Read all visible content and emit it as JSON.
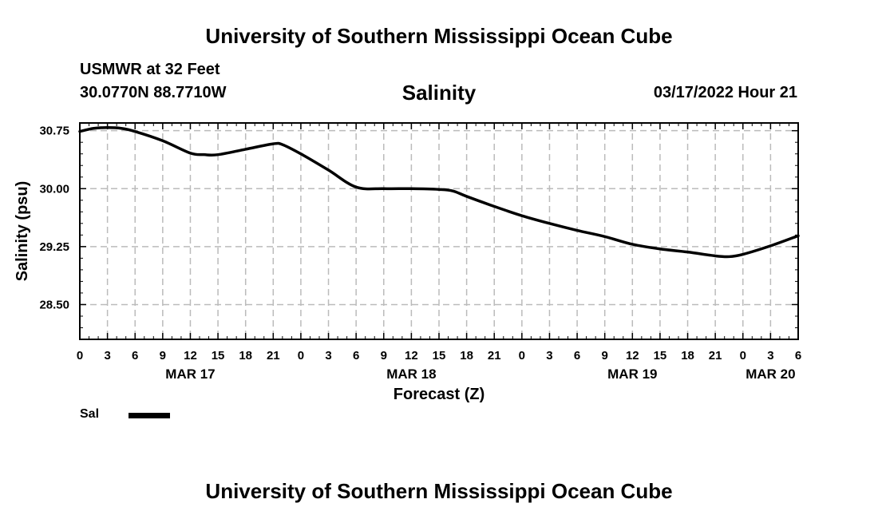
{
  "header": {
    "title": "University of Southern Mississippi Ocean Cube",
    "station": "USMWR at 32 Feet",
    "coords": "30.0770N  88.7710W",
    "date": "03/17/2022 Hour 21"
  },
  "footer": {
    "title": "University of Southern Mississippi Ocean Cube"
  },
  "legend": {
    "label": "Sal",
    "color": "#000000"
  },
  "chart_data": {
    "type": "line",
    "title": "Salinity",
    "xlabel": "Forecast (Z)",
    "ylabel": "Salinity (psu)",
    "xlim": [
      0,
      78
    ],
    "ylim": [
      28.05,
      30.85
    ],
    "grid": true,
    "yticks": [
      28.5,
      29.25,
      30.0,
      30.75
    ],
    "ytick_labels": [
      "28.50",
      "29.25",
      "30.00",
      "30.75"
    ],
    "xtick_values": [
      0,
      3,
      6,
      9,
      12,
      15,
      18,
      21,
      24,
      27,
      30,
      33,
      36,
      39,
      42,
      45,
      48,
      51,
      54,
      57,
      60,
      63,
      66,
      69,
      72,
      75,
      78
    ],
    "xtick_labels": [
      "0",
      "3",
      "6",
      "9",
      "12",
      "15",
      "18",
      "21",
      "0",
      "3",
      "6",
      "9",
      "12",
      "15",
      "18",
      "21",
      "0",
      "3",
      "6",
      "9",
      "12",
      "15",
      "18",
      "21",
      "0",
      "3",
      "6"
    ],
    "date_labels": [
      {
        "x": 12,
        "label": "MAR 17"
      },
      {
        "x": 36,
        "label": "MAR 18"
      },
      {
        "x": 60,
        "label": "MAR 19"
      },
      {
        "x": 75,
        "label": "MAR 20"
      }
    ],
    "series": [
      {
        "name": "Sal",
        "x": [
          0,
          1.5,
          3,
          4.5,
          6,
          9,
          12,
          13.5,
          15,
          18,
          21,
          22,
          24,
          27,
          30,
          33,
          36,
          39,
          40.5,
          42,
          45,
          48,
          51,
          54,
          57,
          60,
          63,
          66,
          69,
          70.5,
          72,
          75,
          78
        ],
        "values": [
          30.74,
          30.78,
          30.79,
          30.78,
          30.74,
          30.62,
          30.46,
          30.44,
          30.44,
          30.51,
          30.58,
          30.57,
          30.45,
          30.24,
          30.02,
          30.0,
          30.0,
          29.99,
          29.97,
          29.9,
          29.77,
          29.65,
          29.55,
          29.46,
          29.38,
          29.28,
          29.22,
          29.18,
          29.13,
          29.12,
          29.15,
          29.26,
          29.39
        ]
      }
    ]
  }
}
